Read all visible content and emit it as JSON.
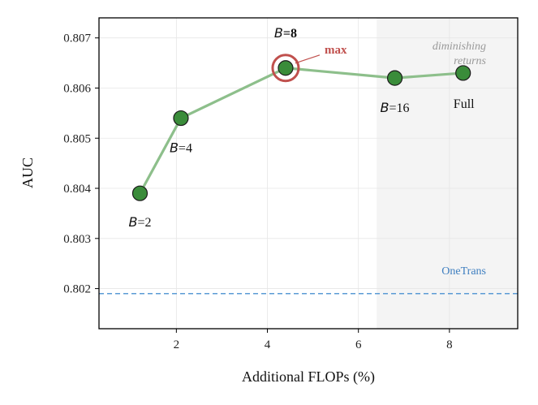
{
  "chart_data": {
    "type": "line",
    "xlabel": "Additional FLOPs (%)",
    "ylabel": "AUC",
    "xlim": [
      0.3,
      9.5
    ],
    "ylim": [
      0.8012,
      0.8074
    ],
    "xticks": [
      2,
      4,
      6,
      8
    ],
    "yticks": [
      0.802,
      0.803,
      0.804,
      0.805,
      0.806,
      0.807
    ],
    "xtick_labels": [
      "2",
      "4",
      "6",
      "8"
    ],
    "ytick_labels": [
      "0.802",
      "0.803",
      "0.804",
      "0.805",
      "0.806",
      "0.807"
    ],
    "grid": true,
    "series": [
      {
        "x": [
          1.2,
          2.1,
          4.4,
          6.8,
          8.3
        ],
        "y": [
          0.8039,
          0.8054,
          0.8064,
          0.8062,
          0.8063
        ],
        "color": "#8dbf8b",
        "marker_color": "#3a8c3a"
      }
    ],
    "point_labels": [
      {
        "var": "B",
        "text": "=2"
      },
      {
        "var": "B",
        "text": "=4"
      },
      {
        "var": "B",
        "text": "=8"
      },
      {
        "var": "B",
        "text": "=16"
      },
      {
        "var": "",
        "text": "Full"
      }
    ],
    "baseline": {
      "y": 0.8019,
      "label": "OneTrans",
      "color": "#5b9bd5"
    },
    "shaded_region": {
      "x_start": 6.4,
      "label_line1": "diminishing",
      "label_line2": "returns"
    },
    "annotation": {
      "text": "max",
      "point_index": 2,
      "color": "#c0504d"
    }
  }
}
